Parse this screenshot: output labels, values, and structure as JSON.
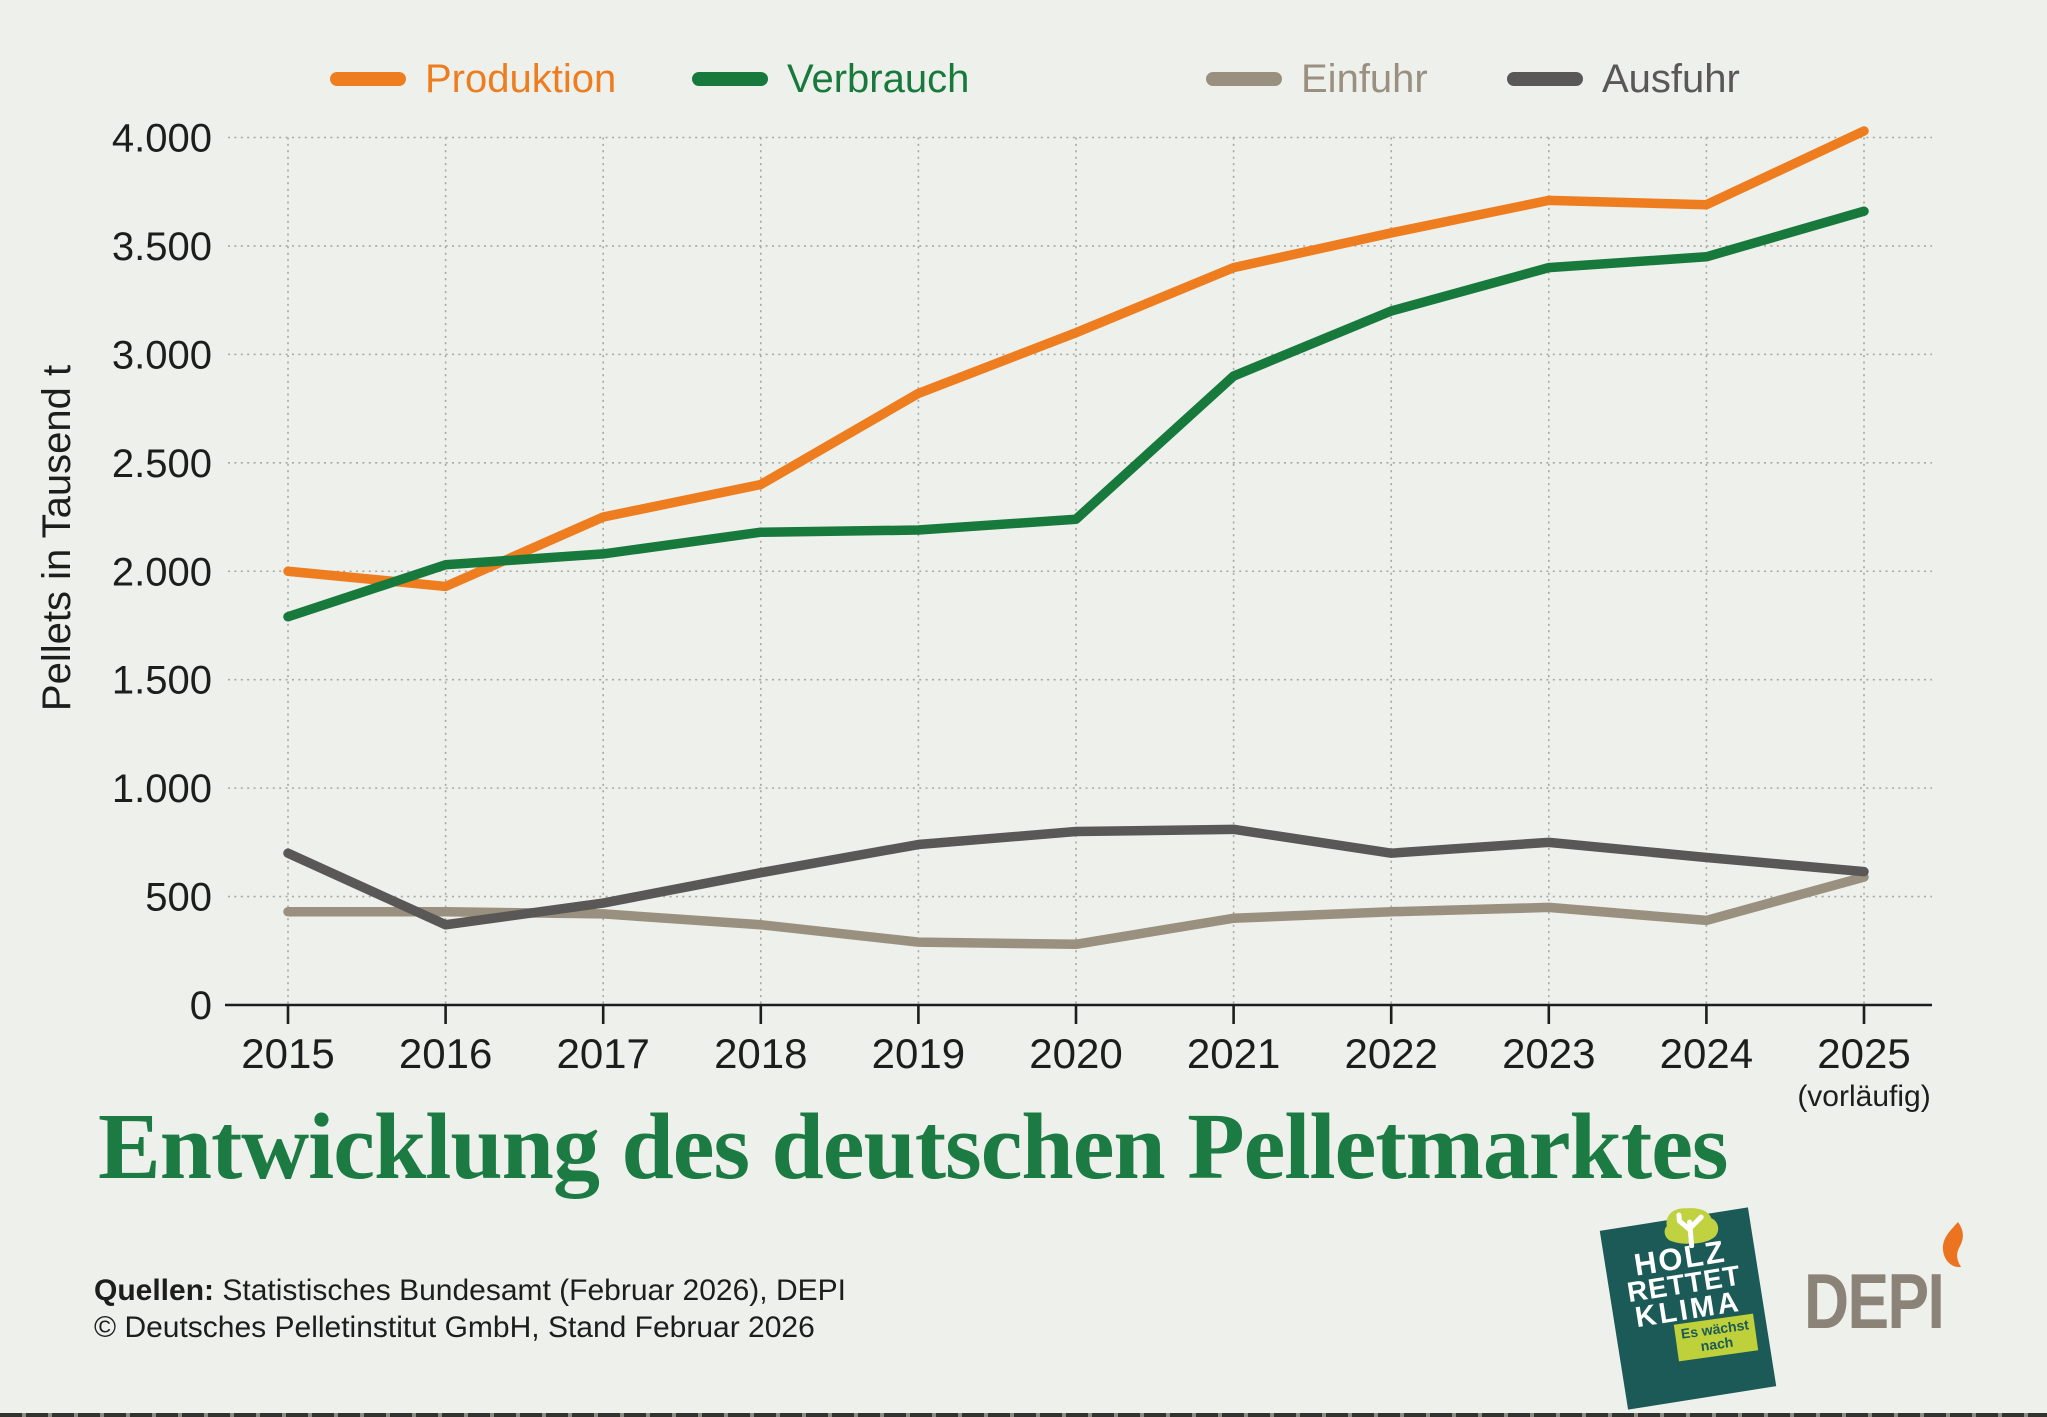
{
  "colors": {
    "background": "#eef0ec",
    "title": "#1b7b42",
    "axis": "#1d1d1b",
    "grid": "#a8a8a2"
  },
  "legend": {
    "items": [
      {
        "label": "Produktion",
        "color": "#ee7d20"
      },
      {
        "label": "Verbrauch",
        "color": "#17793b"
      },
      {
        "label": "Einfuhr",
        "color": "#9a9080"
      },
      {
        "label": "Ausfuhr",
        "color": "#5a5857"
      }
    ]
  },
  "chart_data": {
    "type": "line",
    "title": "Entwicklung des deutschen Pelletmarktes",
    "xlabel": "",
    "ylabel": "Pellets in Tausend t",
    "x_note": "(vorläufig)",
    "grid": true,
    "legend_position": "top",
    "ylim": [
      0,
      4000
    ],
    "categories": [
      "2015",
      "2016",
      "2017",
      "2018",
      "2019",
      "2020",
      "2021",
      "2022",
      "2023",
      "2024",
      "2025"
    ],
    "y_ticks": [
      0,
      500,
      1000,
      1500,
      2000,
      2500,
      3000,
      3500,
      4000
    ],
    "y_tick_labels": [
      "0",
      "500",
      "1.000",
      "1.500",
      "2.000",
      "2.500",
      "3.000",
      "3.500",
      "4.000"
    ],
    "series": [
      {
        "name": "Produktion",
        "color": "#ee7d20",
        "values": [
          2000,
          1930,
          2250,
          2400,
          2820,
          3100,
          3400,
          3560,
          3710,
          3690,
          4030
        ]
      },
      {
        "name": "Verbrauch",
        "color": "#17793b",
        "values": [
          1790,
          2030,
          2080,
          2180,
          2190,
          2240,
          2900,
          3200,
          3400,
          3450,
          3660
        ]
      },
      {
        "name": "Einfuhr",
        "color": "#9a9080",
        "values": [
          430,
          430,
          420,
          370,
          290,
          280,
          400,
          430,
          450,
          390,
          590
        ]
      },
      {
        "name": "Ausfuhr",
        "color": "#5a5857",
        "values": [
          700,
          370,
          470,
          610,
          740,
          800,
          810,
          700,
          750,
          680,
          615
        ]
      }
    ]
  },
  "footer": {
    "sources_label": "Quellen:",
    "sources_text": "Statistisches Bundesamt (Februar 2026), DEPI",
    "copyright": "© Deutsches Pelletinstitut GmbH, Stand Februar 2026"
  },
  "logos": {
    "badge": {
      "line1": "HOLZ",
      "line2": "RETTET",
      "line3": "KLIMA",
      "ribbon_line1": "Es wächst",
      "ribbon_line2": "nach",
      "bg": "#1b5a57",
      "ribbon_bg": "#bed03a",
      "tree_color": "#c0d23f"
    },
    "depi": {
      "text": "DEPI",
      "color": "#8b8377",
      "flame_color": "#ec7420"
    }
  }
}
